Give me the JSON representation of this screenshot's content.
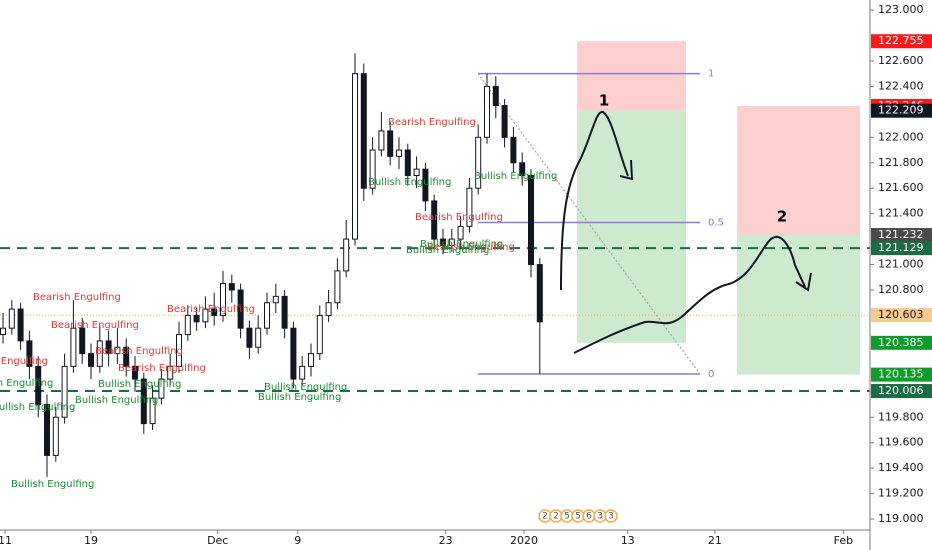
{
  "chart_data": {
    "type": "candlestick",
    "xlim": [
      -0.341,
      98.523
    ],
    "ylim": [
      118.914,
      123.079
    ],
    "xticks": [
      {
        "value": 0.23,
        "label": "11"
      },
      {
        "value": 10,
        "label": "19"
      },
      {
        "value": 24.4,
        "label": "Dec"
      },
      {
        "value": 33.5,
        "label": "9"
      },
      {
        "value": 50.3,
        "label": "23"
      },
      {
        "value": 59.2,
        "label": "2020"
      },
      {
        "value": 71,
        "label": "13"
      },
      {
        "value": 80.9,
        "label": "21"
      },
      {
        "value": 95.5,
        "label": "Feb"
      }
    ],
    "yticks": [
      {
        "value": 123,
        "label": "123.000"
      },
      {
        "value": 122.6,
        "label": "122.600"
      },
      {
        "value": 122.4,
        "label": "122.400"
      },
      {
        "value": 122,
        "label": "122.000"
      },
      {
        "value": 121.8,
        "label": "121.800"
      },
      {
        "value": 121.6,
        "label": "121.600"
      },
      {
        "value": 121.4,
        "label": "121.400"
      },
      {
        "value": 121,
        "label": "121.000"
      },
      {
        "value": 120.8,
        "label": "120.800"
      },
      {
        "value": 119.8,
        "label": "119.800"
      },
      {
        "value": 119.6,
        "label": "119.600"
      },
      {
        "value": 119.4,
        "label": "119.400"
      },
      {
        "value": 119.2,
        "label": "119.200"
      },
      {
        "value": 119,
        "label": "119.000"
      }
    ],
    "candles": {
      "x": [
        0,
        1,
        2,
        3,
        4,
        5,
        6,
        7,
        8,
        9,
        10,
        11,
        12,
        13,
        14,
        15,
        16,
        17,
        18,
        19,
        20,
        21,
        22,
        23,
        24,
        25,
        26,
        27,
        28,
        29,
        30,
        31,
        32,
        33,
        34,
        35,
        36,
        37,
        38,
        39,
        40,
        41,
        42,
        43,
        44,
        45,
        46,
        47,
        48,
        49,
        50,
        51,
        52,
        53,
        54,
        55,
        56,
        57,
        58,
        59,
        60,
        61
      ],
      "open": [
        120.45,
        120.5,
        120.65,
        120.4,
        120.2,
        119.9,
        119.5,
        119.8,
        120.2,
        120.5,
        120.3,
        120.2,
        120.4,
        120.3,
        120.35,
        120.2,
        120.1,
        119.75,
        119.95,
        120.1,
        120.2,
        120.45,
        120.6,
        120.55,
        120.65,
        120.6,
        120.85,
        120.8,
        120.5,
        120.35,
        120.5,
        120.7,
        120.75,
        120.5,
        120.1,
        120.2,
        120.3,
        120.6,
        120.7,
        120.95,
        121.2,
        122.5,
        121.6,
        121.9,
        122.05,
        121.85,
        121.9,
        121.7,
        121.75,
        121.5,
        121.2,
        121.15,
        121.2,
        121.3,
        121.6,
        122.0,
        122.4,
        122.25,
        122.0,
        121.8,
        121.7,
        121.0
      ],
      "high": [
        120.62,
        120.72,
        120.7,
        120.48,
        120.28,
        119.98,
        119.88,
        120.3,
        120.72,
        120.58,
        120.38,
        120.52,
        120.48,
        120.5,
        120.42,
        120.28,
        120.15,
        120.05,
        120.18,
        120.3,
        120.55,
        120.68,
        120.66,
        120.75,
        120.78,
        120.95,
        120.92,
        120.85,
        120.56,
        120.6,
        120.78,
        120.85,
        120.8,
        120.55,
        120.28,
        120.38,
        120.68,
        120.8,
        121.05,
        121.35,
        122.66,
        122.58,
        122.0,
        122.2,
        122.12,
        122.0,
        121.95,
        121.85,
        121.8,
        121.55,
        121.28,
        121.28,
        121.38,
        121.68,
        122.1,
        122.5,
        122.48,
        122.3,
        122.08,
        121.88,
        121.75,
        121.05
      ],
      "low": [
        120.38,
        120.45,
        120.33,
        120.1,
        119.8,
        119.33,
        119.45,
        119.75,
        120.15,
        120.22,
        120.1,
        120.15,
        120.2,
        120.22,
        120.12,
        120.0,
        119.67,
        119.7,
        119.9,
        120.05,
        120.15,
        120.4,
        120.48,
        120.5,
        120.52,
        120.55,
        120.7,
        120.42,
        120.26,
        120.3,
        120.45,
        120.62,
        120.42,
        120.03,
        120.05,
        120.12,
        120.25,
        120.55,
        120.65,
        120.9,
        121.15,
        121.5,
        121.55,
        121.85,
        121.78,
        121.75,
        121.62,
        121.6,
        121.42,
        121.12,
        121.08,
        121.1,
        121.12,
        121.25,
        121.55,
        121.95,
        122.15,
        121.92,
        121.72,
        121.62,
        120.9,
        120.14
      ],
      "close": [
        120.5,
        120.65,
        120.4,
        120.2,
        119.9,
        119.5,
        119.8,
        120.2,
        120.5,
        120.3,
        120.2,
        120.4,
        120.3,
        120.35,
        120.2,
        120.1,
        119.75,
        119.95,
        120.1,
        120.2,
        120.45,
        120.6,
        120.55,
        120.65,
        120.6,
        120.85,
        120.8,
        120.5,
        120.35,
        120.5,
        120.7,
        120.75,
        120.5,
        120.1,
        120.2,
        120.3,
        120.6,
        120.7,
        120.95,
        121.2,
        122.5,
        121.6,
        121.9,
        122.05,
        121.85,
        121.9,
        121.7,
        121.75,
        121.5,
        121.2,
        121.15,
        121.2,
        121.3,
        121.6,
        122.0,
        122.4,
        122.25,
        122.0,
        121.8,
        121.7,
        121.0,
        120.55
      ]
    },
    "price_tags": [
      {
        "value": 122.755,
        "color": "#ff1a1a"
      },
      {
        "value": 122.246,
        "color": "#ff1a1a"
      },
      {
        "value": 122.209,
        "color": "#131722"
      },
      {
        "value": 121.232,
        "color": "#4a4a4a"
      },
      {
        "value": 121.129,
        "color": "#1b6b45",
        "line": "dashed"
      },
      {
        "value": 120.603,
        "color": "#fbc98c",
        "text_color": "#131722",
        "line": "dotted"
      },
      {
        "value": 120.385,
        "color": "#0f9d2a"
      },
      {
        "value": 120.135,
        "color": "#0f9d2a"
      },
      {
        "value": 120.006,
        "color": "#1b6b45",
        "line": "dashed"
      }
    ],
    "fib": {
      "color": "#8c7bd6",
      "levels": [
        {
          "value": 122.5,
          "label": "1"
        },
        {
          "value": 121.33,
          "label": "0.5"
        },
        {
          "value": 120.14,
          "label": "0"
        }
      ]
    },
    "drawing_labels": [
      "1",
      "2"
    ],
    "events": [
      "2",
      "2",
      "5",
      "5",
      "6",
      "3",
      "3"
    ],
    "annotations": [
      {
        "text": "Bearish Engulfing",
        "color": "#e53935"
      },
      {
        "text": "Bearish Engulfing",
        "color": "#e53935"
      },
      {
        "text": "Bearish Engulfing",
        "color": "#e53935"
      },
      {
        "text": "Bearish Engulfing",
        "color": "#e53935"
      },
      {
        "text": "Bearish Engulfing",
        "color": "#e53935"
      },
      {
        "text": "Bearish Engulfing",
        "color": "#e53935"
      },
      {
        "text": "Bearish Engulfing",
        "color": "#e53935"
      },
      {
        "text": "Bearish Engulfing",
        "color": "#e53935"
      },
      {
        "text": "Bearish Engulfing",
        "color": "#e53935"
      },
      {
        "text": "Bullish Engulfing",
        "color": "#1a8c2e"
      },
      {
        "text": "Bullish Engulfing",
        "color": "#1a8c2e"
      },
      {
        "text": "Bullish Engulfing",
        "color": "#1a8c2e"
      },
      {
        "text": "Bullish Engulfing",
        "color": "#1a8c2e"
      },
      {
        "text": "Bullish Engulfing",
        "color": "#1a8c2e"
      },
      {
        "text": "Bullish Engulfing",
        "color": "#1a8c2e"
      },
      {
        "text": "Bullish Engulfing",
        "color": "#1a8c2e"
      },
      {
        "text": "Bullish Engulfing",
        "color": "#1a8c2e"
      },
      {
        "text": "Bullish Engulfing",
        "color": "#1a8c2e"
      },
      {
        "text": "Bullish Engulfing",
        "color": "#1a8c2e"
      },
      {
        "text": "Bullish Engulfing",
        "color": "#1a8c2e"
      }
    ]
  }
}
